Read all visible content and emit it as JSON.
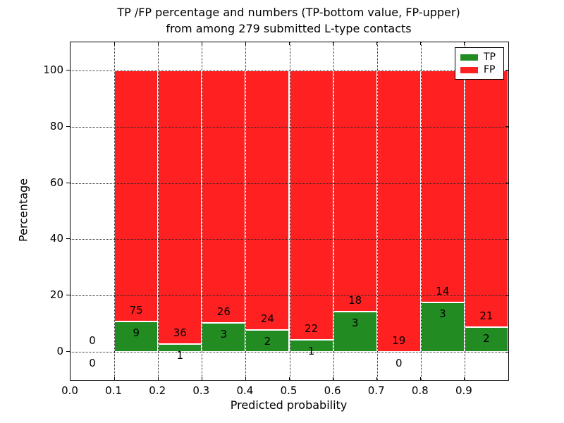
{
  "title": {
    "line1": "TP /FP percentage and numbers (TP-bottom value, FP-upper)",
    "line2": "from among 279 submitted L-type contacts"
  },
  "axes": {
    "xlabel": "Predicted probability",
    "ylabel": "Percentage",
    "xtick_labels": [
      "0.0",
      "0.1",
      "0.2",
      "0.3",
      "0.4",
      "0.5",
      "0.6",
      "0.7",
      "0.8",
      "0.9"
    ],
    "ytick_labels": [
      "0",
      "20",
      "40",
      "60",
      "80",
      "100"
    ]
  },
  "legend": {
    "entries": [
      {
        "label": "TP",
        "color": "#228b22"
      },
      {
        "label": "FP",
        "color": "#ff2121"
      }
    ]
  },
  "colors": {
    "tp": "#228b22",
    "fp": "#ff2121",
    "grid": "#222222",
    "frame": "#000000",
    "background": "#ffffff"
  },
  "chart_data": {
    "type": "bar",
    "stacked": true,
    "title": "TP /FP percentage and numbers (TP-bottom value, FP-upper) from among 279 submitted L-type contacts",
    "xlabel": "Predicted probability",
    "ylabel": "Percentage",
    "xlim": [
      0.0,
      1.0
    ],
    "ylim": [
      -10,
      110
    ],
    "xticks": [
      0.0,
      0.1,
      0.2,
      0.3,
      0.4,
      0.5,
      0.6,
      0.7,
      0.8,
      0.9
    ],
    "yticks": [
      0,
      20,
      40,
      60,
      80,
      100
    ],
    "grid": true,
    "grid_style": "dotted",
    "grid_above_bars": true,
    "legend_position": "upper right",
    "total_contacts": 279,
    "bar_semantics": "Each bin: green bottom segment height = tp/(tp+fp)*100 percent, red segment fills up to 100 percent. Counts annotated at segment boundary: FP count above, TP count below.",
    "annotation_offset_units": 4,
    "bins": [
      {
        "range": [
          0.0,
          0.1
        ],
        "tp": 0,
        "fp": 0
      },
      {
        "range": [
          0.1,
          0.2
        ],
        "tp": 9,
        "fp": 75
      },
      {
        "range": [
          0.2,
          0.3
        ],
        "tp": 1,
        "fp": 36
      },
      {
        "range": [
          0.3,
          0.4
        ],
        "tp": 3,
        "fp": 26
      },
      {
        "range": [
          0.4,
          0.5
        ],
        "tp": 2,
        "fp": 24
      },
      {
        "range": [
          0.5,
          0.6
        ],
        "tp": 1,
        "fp": 22
      },
      {
        "range": [
          0.6,
          0.7
        ],
        "tp": 3,
        "fp": 18
      },
      {
        "range": [
          0.7,
          0.8
        ],
        "tp": 0,
        "fp": 19
      },
      {
        "range": [
          0.8,
          0.9
        ],
        "tp": 3,
        "fp": 14
      },
      {
        "range": [
          0.9,
          1.0
        ],
        "tp": 2,
        "fp": 21
      }
    ],
    "series": [
      {
        "name": "TP",
        "color": "#228b22",
        "counts": [
          0,
          9,
          1,
          3,
          2,
          1,
          3,
          0,
          3,
          2
        ]
      },
      {
        "name": "FP",
        "color": "#ff2121",
        "counts": [
          0,
          75,
          36,
          26,
          24,
          22,
          18,
          19,
          14,
          21
        ]
      }
    ]
  }
}
